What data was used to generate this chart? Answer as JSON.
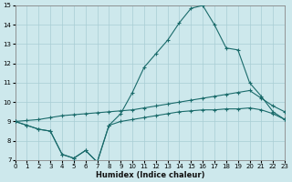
{
  "xlabel": "Humidex (Indice chaleur)",
  "background_color": "#cde8ec",
  "grid_color": "#a8cdd4",
  "line_color": "#1a6b6b",
  "xlim": [
    0,
    23
  ],
  "ylim": [
    7,
    15
  ],
  "xticks": [
    0,
    1,
    2,
    3,
    4,
    5,
    6,
    7,
    8,
    9,
    10,
    11,
    12,
    13,
    14,
    15,
    16,
    17,
    18,
    19,
    20,
    21,
    22,
    23
  ],
  "yticks": [
    7,
    8,
    9,
    10,
    11,
    12,
    13,
    14,
    15
  ],
  "hours": [
    0,
    1,
    2,
    3,
    4,
    5,
    6,
    7,
    8,
    9,
    10,
    11,
    12,
    13,
    14,
    15,
    16,
    17,
    18,
    19,
    20,
    21,
    22,
    23
  ],
  "line_top": [
    9.0,
    8.8,
    8.6,
    8.5,
    7.3,
    7.1,
    7.5,
    6.9,
    8.8,
    9.4,
    10.5,
    11.8,
    12.5,
    13.2,
    14.1,
    14.85,
    15.0,
    14.0,
    12.8,
    12.7,
    11.0,
    10.3,
    9.5,
    9.1
  ],
  "line_diag": [
    9.0,
    9.05,
    9.1,
    9.2,
    9.3,
    9.35,
    9.4,
    9.45,
    9.5,
    9.55,
    9.6,
    9.7,
    9.8,
    9.9,
    10.0,
    10.1,
    10.2,
    10.3,
    10.4,
    10.5,
    10.6,
    10.2,
    9.8,
    9.5
  ],
  "line_bottom": [
    9.0,
    8.8,
    8.6,
    8.5,
    7.3,
    7.1,
    7.5,
    6.9,
    8.8,
    9.0,
    9.1,
    9.2,
    9.3,
    9.4,
    9.5,
    9.55,
    9.6,
    9.6,
    9.65,
    9.65,
    9.7,
    9.6,
    9.4,
    9.1
  ]
}
